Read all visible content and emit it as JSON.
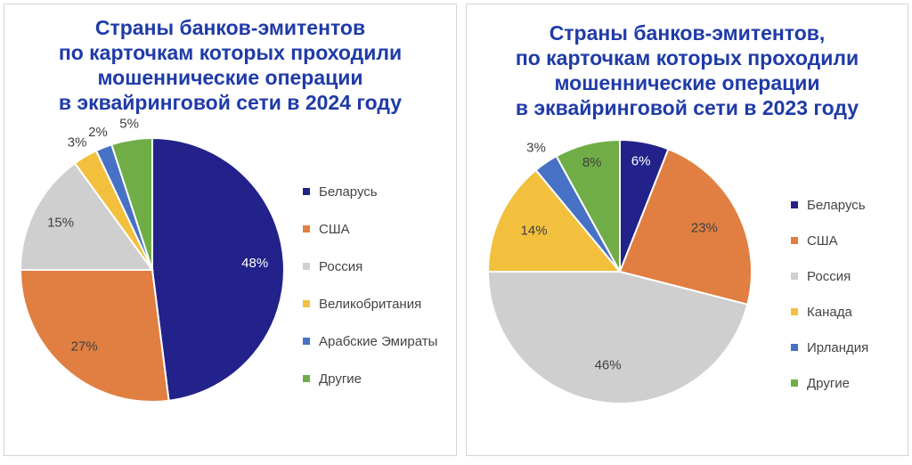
{
  "chart_data": [
    {
      "type": "pie",
      "title": "Страны банков-эмитентов\nпо карточкам которых проходили\nмошеннические операции\nв эквайринговой сети в 2024 году",
      "legend_position": "right",
      "slices": [
        {
          "name": "Беларусь",
          "value": 48,
          "label": "48%",
          "color": "#22228a"
        },
        {
          "name": "США",
          "value": 27,
          "label": "27%",
          "color": "#e07f41"
        },
        {
          "name": "Россия",
          "value": 15,
          "label": "15%",
          "color": "#cfcfcf"
        },
        {
          "name": "Великобритания",
          "value": 3,
          "label": "3%",
          "color": "#f2c03d"
        },
        {
          "name": "Арабские Эмираты",
          "value": 2,
          "label": "2%",
          "color": "#4771c4"
        },
        {
          "name": "Другие",
          "value": 5,
          "label": "5%",
          "color": "#70ad47"
        }
      ]
    },
    {
      "type": "pie",
      "title": "Страны банков-эмитентов,\nпо карточкам которых проходили\nмошеннические операции\nв эквайринговой сети в 2023 году",
      "legend_position": "right",
      "slices": [
        {
          "name": "Беларусь",
          "value": 6,
          "label": "6%",
          "color": "#22228a"
        },
        {
          "name": "США",
          "value": 23,
          "label": "23%",
          "color": "#e07f41"
        },
        {
          "name": "Россия",
          "value": 46,
          "label": "46%",
          "color": "#cfcfcf"
        },
        {
          "name": "Канада",
          "value": 14,
          "label": "14%",
          "color": "#f2c03d"
        },
        {
          "name": "Ирландия",
          "value": 3,
          "label": "3%",
          "color": "#4771c4"
        },
        {
          "name": "Другие",
          "value": 8,
          "label": "8%",
          "color": "#70ad47"
        }
      ]
    }
  ]
}
